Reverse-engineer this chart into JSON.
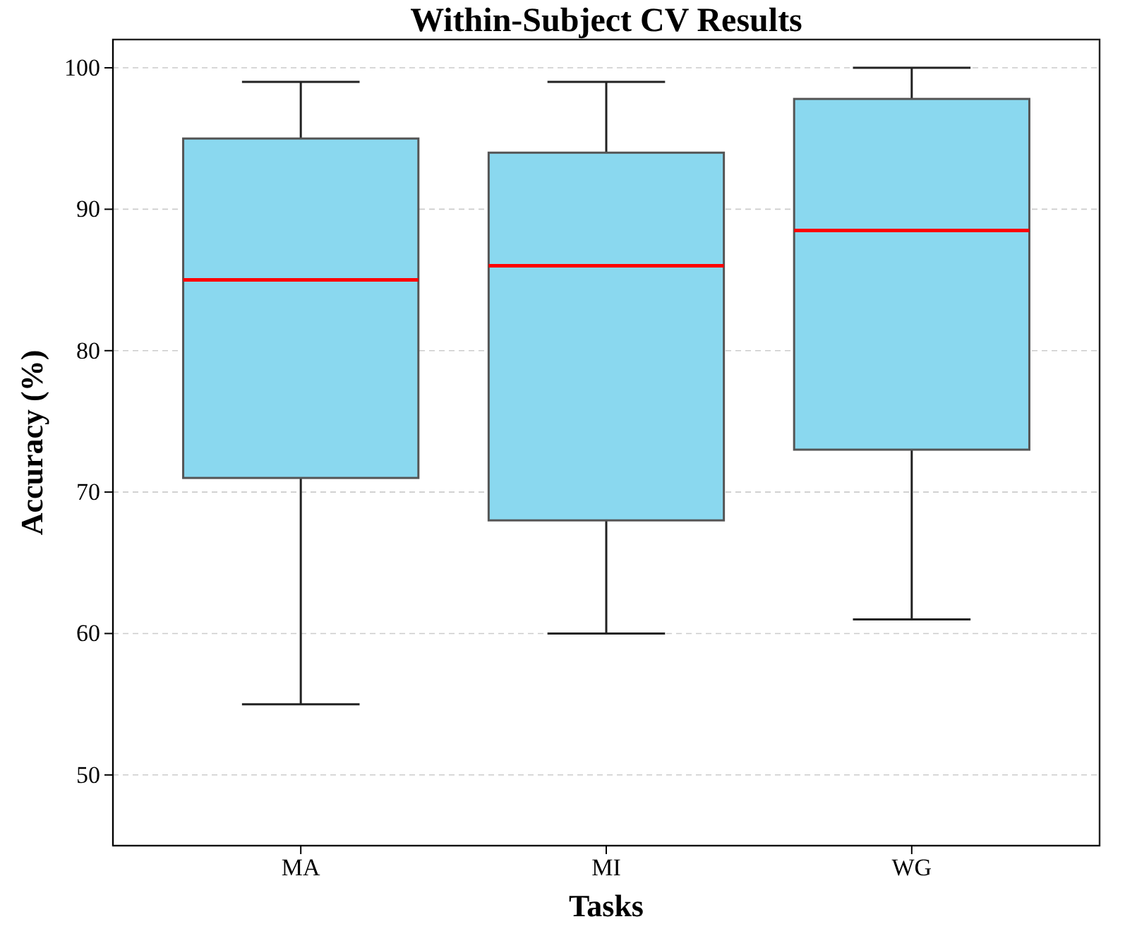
{
  "chart_data": {
    "type": "box",
    "title": "Within-Subject CV Results",
    "xlabel": "Tasks",
    "ylabel": "Accuracy (%)",
    "categories": [
      "MA",
      "MI",
      "WG"
    ],
    "boxes": [
      {
        "low": 55,
        "q1": 71,
        "median": 85,
        "q3": 95,
        "high": 99
      },
      {
        "low": 60,
        "q1": 68,
        "median": 86,
        "q3": 94,
        "high": 99
      },
      {
        "low": 61,
        "q1": 73,
        "median": 88.5,
        "q3": 97.8,
        "high": 100
      }
    ],
    "color": "#8ad8ef",
    "ylim": [
      45,
      102
    ],
    "yticks": [
      50,
      60,
      70,
      80,
      90,
      100
    ],
    "grid": "y"
  }
}
